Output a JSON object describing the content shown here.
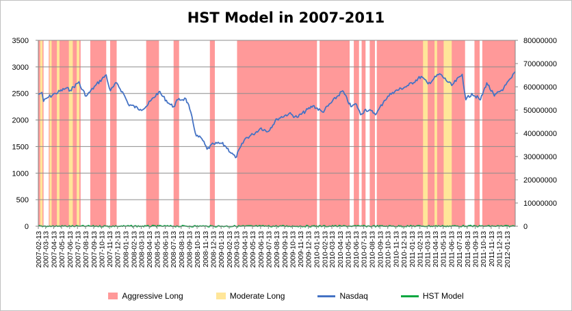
{
  "chart_data": {
    "type": "line",
    "title": "HST Model in 2007-2011",
    "xlabel": "",
    "ylabel": "",
    "ylim": [
      0,
      3500
    ],
    "y_ticks": [
      "0",
      "500",
      "1000",
      "1500",
      "2000",
      "2500",
      "3000",
      "3500"
    ],
    "y2lim": [
      0,
      80000000
    ],
    "y2_ticks": [
      "0",
      "10000000",
      "20000000",
      "30000000",
      "40000000",
      "50000000",
      "60000000",
      "70000000",
      "80000000"
    ],
    "x_range": [
      "2007-02-13",
      "2012-02-13"
    ],
    "x_ticks": [
      "2007-02-13",
      "2007-03-13",
      "2007-04-13",
      "2007-05-13",
      "2007-06-13",
      "2007-07-13",
      "2007-08-13",
      "2007-09-13",
      "2007-10-13",
      "2007-11-13",
      "2007-12-13",
      "2008-01-13",
      "2008-02-13",
      "2008-03-13",
      "2008-04-13",
      "2008-05-13",
      "2008-06-13",
      "2008-07-13",
      "2008-08-13",
      "2008-09-13",
      "2008-10-13",
      "2008-11-13",
      "2008-12-13",
      "2009-01-13",
      "2009-02-13",
      "2009-03-13",
      "2009-04-13",
      "2009-05-13",
      "2009-06-13",
      "2009-07-13",
      "2009-08-13",
      "2009-09-13",
      "2009-10-13",
      "2009-11-13",
      "2009-12-13",
      "2010-01-13",
      "2010-02-13",
      "2010-03-13",
      "2010-04-13",
      "2010-05-13",
      "2010-06-13",
      "2010-07-13",
      "2010-08-13",
      "2010-09-13",
      "2010-10-13",
      "2010-11-13",
      "2010-12-13",
      "2011-01-13",
      "2011-02-13",
      "2011-03-13",
      "2011-04-13",
      "2011-05-13",
      "2011-06-13",
      "2011-07-13",
      "2011-08-13",
      "2011-09-13",
      "2011-10-13",
      "2011-11-13",
      "2011-12-13",
      "2012-01-13"
    ],
    "grid": true,
    "legend_position": "bottom",
    "colors": {
      "aggressive": "#ff9999",
      "moderate": "#ffe699",
      "nasdaq": "#4472c4",
      "hst": "#00a63e",
      "grid": "#8c8c8c"
    },
    "series": [
      {
        "name": "Nasdaq",
        "axis": "left",
        "x": [
          "2007-02-13",
          "2007-02-27",
          "2007-03-05",
          "2007-03-20",
          "2007-04-20",
          "2007-05-31",
          "2007-06-15",
          "2007-07-19",
          "2007-07-25",
          "2007-08-16",
          "2007-09-20",
          "2007-10-31",
          "2007-11-12",
          "2007-11-16",
          "2007-12-10",
          "2008-01-10",
          "2008-01-23",
          "2008-03-10",
          "2008-03-31",
          "2008-05-19",
          "2008-06-30",
          "2008-07-15",
          "2008-07-31",
          "2008-08-31",
          "2008-09-15",
          "2008-10-10",
          "2008-10-31",
          "2008-11-20",
          "2008-12-15",
          "2009-01-15",
          "2009-01-31",
          "2009-03-09",
          "2009-04-15",
          "2009-05-15",
          "2009-06-15",
          "2009-07-10",
          "2009-08-15",
          "2009-09-30",
          "2009-10-31",
          "2009-12-31",
          "2010-02-05",
          "2010-04-23",
          "2010-05-25",
          "2010-06-15",
          "2010-07-01",
          "2010-07-20",
          "2010-08-31",
          "2010-09-30",
          "2010-10-31",
          "2010-12-31",
          "2011-02-18",
          "2011-03-16",
          "2011-04-29",
          "2011-06-15",
          "2011-07-25",
          "2011-08-08",
          "2011-08-31",
          "2011-10-03",
          "2011-10-27",
          "2011-11-25",
          "2011-12-31",
          "2012-01-31",
          "2012-02-13"
        ],
        "values": [
          2480,
          2520,
          2350,
          2420,
          2500,
          2600,
          2560,
          2720,
          2620,
          2450,
          2650,
          2850,
          2600,
          2550,
          2700,
          2450,
          2300,
          2200,
          2250,
          2530,
          2300,
          2250,
          2380,
          2400,
          2200,
          1700,
          1650,
          1450,
          1550,
          1560,
          1500,
          1290,
          1650,
          1730,
          1850,
          1780,
          2020,
          2120,
          2050,
          2270,
          2150,
          2550,
          2250,
          2300,
          2100,
          2200,
          2120,
          2370,
          2520,
          2650,
          2820,
          2680,
          2870,
          2650,
          2860,
          2380,
          2500,
          2380,
          2700,
          2450,
          2600,
          2800,
          2910
        ]
      },
      {
        "name": "HST Model",
        "axis": "right",
        "x": [
          "2007-02-13",
          "2007-03-05",
          "2007-03-20",
          "2007-04-20",
          "2007-05-31",
          "2007-06-15",
          "2007-07-05",
          "2007-07-19",
          "2007-07-25",
          "2007-08-16",
          "2007-09-20",
          "2007-10-31",
          "2007-11-12",
          "2007-12-10",
          "2008-01-10",
          "2008-03-10",
          "2008-03-31",
          "2008-05-19",
          "2008-06-30",
          "2008-07-15",
          "2008-07-31",
          "2008-08-31",
          "2008-09-15",
          "2008-10-31",
          "2008-11-10",
          "2008-11-20",
          "2008-12-15",
          "2009-01-15",
          "2009-01-31",
          "2009-03-09",
          "2009-04-15",
          "2009-05-15",
          "2009-06-15",
          "2009-07-10",
          "2009-08-15",
          "2009-09-30",
          "2009-10-31",
          "2009-11-15",
          "2009-12-31",
          "2010-02-05",
          "2010-04-23",
          "2010-05-15",
          "2010-06-15",
          "2010-07-01",
          "2010-07-20",
          "2010-08-15",
          "2010-08-31",
          "2010-09-30",
          "2010-10-31",
          "2010-12-31",
          "2011-02-18",
          "2011-02-25",
          "2011-03-16",
          "2011-04-29",
          "2011-05-20",
          "2011-06-15",
          "2011-07-25",
          "2011-08-08",
          "2011-08-31",
          "2011-10-03",
          "2011-10-27",
          "2011-11-25",
          "2011-12-15",
          "2011-12-31",
          "2012-01-31",
          "2012-02-13"
        ],
        "values": [
          27000,
          28000,
          23000,
          27000,
          30000,
          31000,
          32000,
          34500,
          29000,
          29000,
          33000,
          37000,
          34000,
          34000,
          33000,
          29000,
          29000,
          32000,
          32000,
          32000,
          34500,
          32000,
          30500,
          30500,
          30500,
          30500,
          23000,
          20000,
          21000,
          17500,
          26500,
          30000,
          34000,
          34000,
          37500,
          39000,
          41500,
          41000,
          41000,
          42500,
          57000,
          52000,
          49000,
          49000,
          46000,
          46000,
          41500,
          38000,
          55000,
          59000,
          63000,
          73000,
          69000,
          72000,
          70000,
          71000,
          72000,
          56000,
          54000,
          52000,
          53000,
          52000,
          52000,
          45000,
          55000,
          63000
        ]
      }
    ],
    "bands": [
      {
        "name": "Aggressive Long",
        "type": "aggressive",
        "ranges": [
          [
            "2007-02-13",
            "2007-03-05"
          ],
          [
            "2007-03-25",
            "2007-07-25"
          ],
          [
            "2007-08-31",
            "2007-10-31"
          ],
          [
            "2007-11-15",
            "2007-12-10"
          ],
          [
            "2008-04-01",
            "2008-05-20"
          ],
          [
            "2008-07-15",
            "2008-08-05"
          ],
          [
            "2008-12-01",
            "2008-12-20"
          ],
          [
            "2009-03-15",
            "2010-01-15"
          ],
          [
            "2010-01-25",
            "2010-05-20"
          ],
          [
            "2010-06-05",
            "2010-06-25"
          ],
          [
            "2010-07-05",
            "2010-07-20"
          ],
          [
            "2010-08-05",
            "2010-08-25"
          ],
          [
            "2010-09-01",
            "2011-08-05"
          ],
          [
            "2011-09-10",
            "2011-09-30"
          ],
          [
            "2011-10-10",
            "2012-02-13"
          ]
        ]
      },
      {
        "name": "Moderate Long",
        "type": "moderate",
        "ranges": [
          [
            "2007-02-20",
            "2007-03-01"
          ],
          [
            "2007-03-28",
            "2007-04-05"
          ],
          [
            "2007-04-25",
            "2007-05-05"
          ],
          [
            "2007-06-10",
            "2007-06-25"
          ],
          [
            "2007-07-10",
            "2007-07-20"
          ],
          [
            "2011-02-25",
            "2011-03-15"
          ],
          [
            "2011-04-10",
            "2011-04-20"
          ],
          [
            "2011-05-15",
            "2011-06-15"
          ]
        ]
      }
    ],
    "legend": [
      "Aggressive Long",
      "Moderate Long",
      "Nasdaq",
      "HST Model"
    ]
  }
}
